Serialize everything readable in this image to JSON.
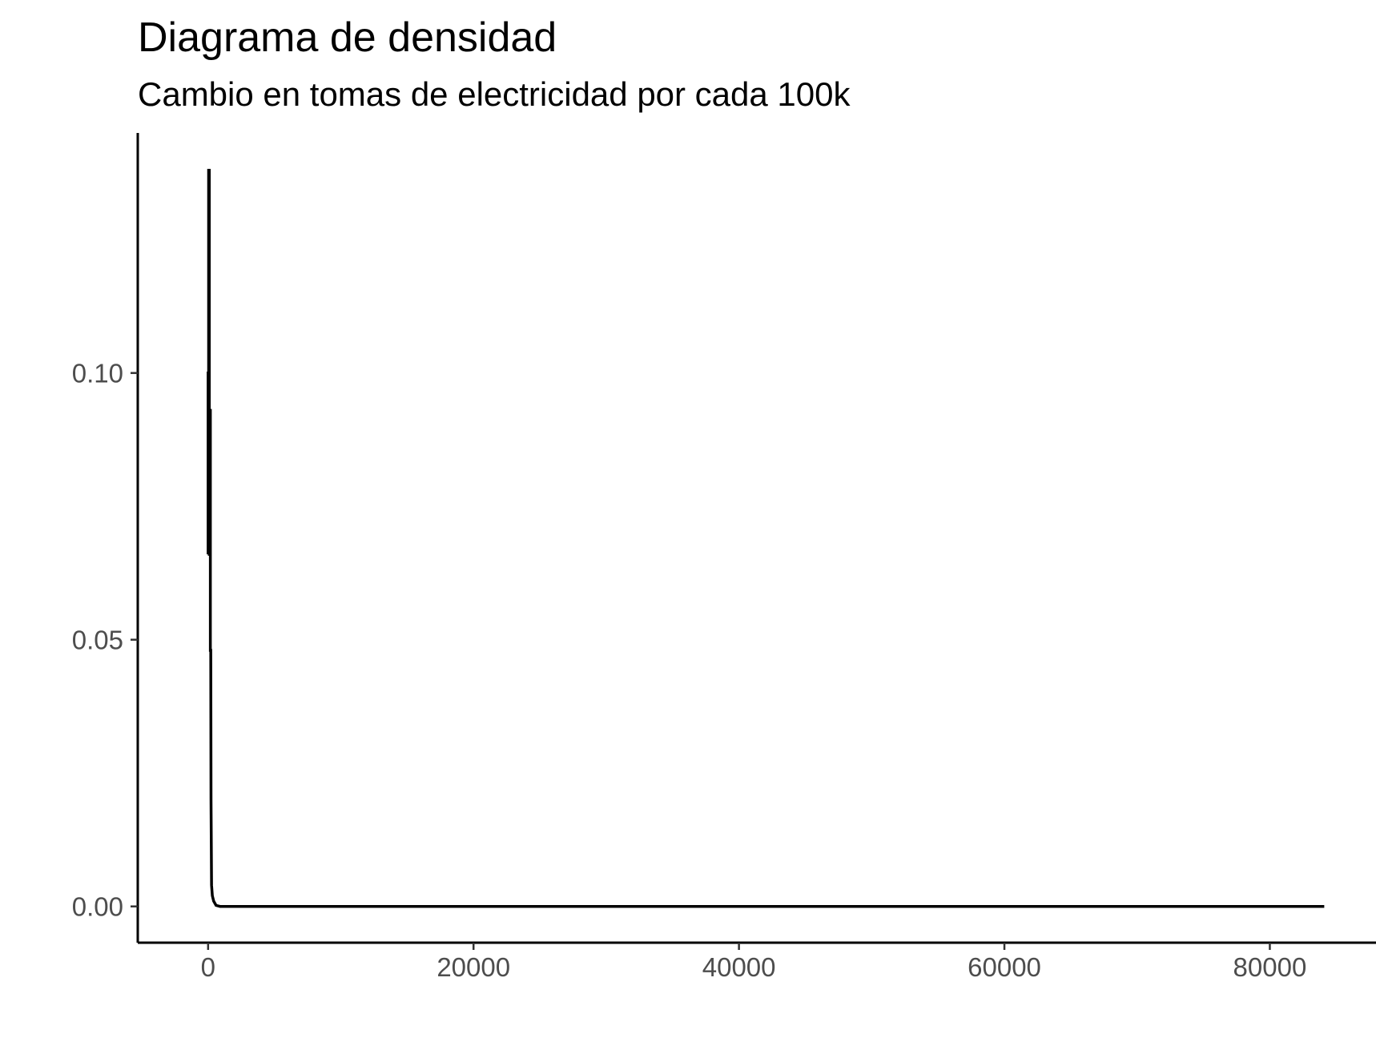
{
  "chart_data": {
    "type": "line",
    "title": "Diagrama de densidad",
    "subtitle": "Cambio en tomas de electricidad por cada 100k",
    "xlabel": "",
    "ylabel": "",
    "xlim": [
      -5300,
      88000
    ],
    "ylim": [
      -0.0068,
      0.145
    ],
    "x_ticks": [
      0,
      20000,
      40000,
      60000,
      80000
    ],
    "x_tick_labels": [
      "0",
      "20000",
      "40000",
      "60000",
      "80000"
    ],
    "y_ticks": [
      0.0,
      0.05,
      0.1
    ],
    "y_tick_labels": [
      "0.00",
      "0.05",
      "0.10"
    ],
    "grid": false,
    "legend": "none",
    "line_color": "#000000",
    "series": [
      {
        "x": [
          0,
          0,
          40,
          40,
          90,
          90,
          140,
          140,
          170,
          170,
          200,
          220,
          260,
          320,
          420,
          600,
          900,
          2000,
          10000,
          30000,
          50000,
          70000,
          84100
        ],
        "y": [
          0.066,
          0.1,
          0.1,
          0.138,
          0.138,
          0.066,
          0.066,
          0.093,
          0.093,
          0.048,
          0.048,
          0.02,
          0.004,
          0.002,
          0.001,
          0.0002,
          0.0,
          0.0,
          0.0,
          0.0,
          0.0,
          0.0,
          0.0
        ]
      }
    ]
  }
}
